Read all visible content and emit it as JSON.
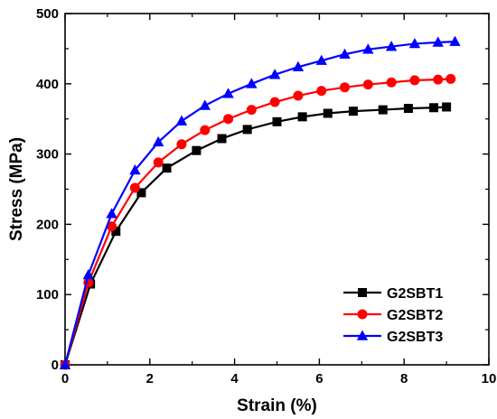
{
  "chart_data": {
    "type": "line",
    "title": "",
    "xlabel": "Strain (%)",
    "ylabel": "Stress (MPa)",
    "xlim": [
      0,
      10
    ],
    "ylim": [
      0,
      500
    ],
    "xticks": [
      0,
      2,
      4,
      6,
      8,
      10
    ],
    "yticks": [
      0,
      100,
      200,
      300,
      400,
      500
    ],
    "grid": false,
    "legend_position": "bottom-right",
    "series": [
      {
        "name": "G2SBT1",
        "color": "#000000",
        "marker": "square",
        "x": [
          0,
          0.6,
          1.2,
          1.8,
          2.4,
          3.1,
          3.7,
          4.3,
          5.0,
          5.6,
          6.2,
          6.8,
          7.5,
          8.1,
          8.7,
          9.0
        ],
        "y": [
          0,
          115,
          190,
          245,
          280,
          305,
          322,
          335,
          346,
          353,
          358,
          361,
          363,
          365,
          366,
          367
        ]
      },
      {
        "name": "G2SBT2",
        "color": "#ff0000",
        "marker": "circle",
        "x": [
          0,
          0.55,
          1.1,
          1.65,
          2.2,
          2.75,
          3.3,
          3.85,
          4.4,
          4.95,
          5.5,
          6.05,
          6.6,
          7.15,
          7.7,
          8.25,
          8.8,
          9.1
        ],
        "y": [
          0,
          117,
          197,
          252,
          288,
          314,
          334,
          350,
          363,
          374,
          383,
          390,
          395,
          399,
          402,
          405,
          406,
          407
        ]
      },
      {
        "name": "G2SBT3",
        "color": "#0000ff",
        "marker": "triangle",
        "x": [
          0,
          0.55,
          1.1,
          1.65,
          2.2,
          2.75,
          3.3,
          3.85,
          4.4,
          4.95,
          5.5,
          6.05,
          6.6,
          7.15,
          7.7,
          8.25,
          8.8,
          9.2
        ],
        "y": [
          0,
          128,
          215,
          277,
          317,
          347,
          369,
          386,
          400,
          413,
          424,
          433,
          442,
          449,
          453,
          457,
          459,
          460
        ]
      }
    ]
  }
}
